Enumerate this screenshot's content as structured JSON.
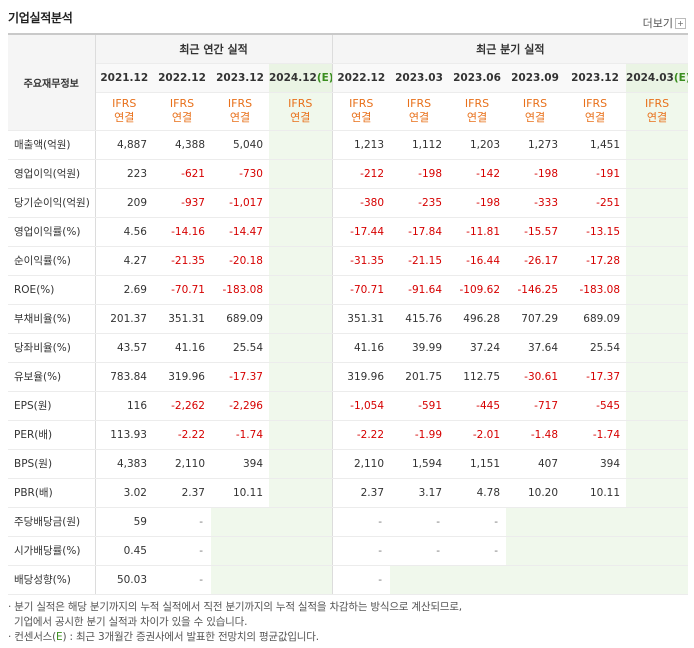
{
  "header": {
    "title": "기업실적분석",
    "more_label": "더보기",
    "more_icon": "plus-box-icon"
  },
  "table": {
    "corner_label": "주요재무정보",
    "group_annual": "최근 연간 실적",
    "group_quarter": "최근 분기 실적",
    "periods": [
      {
        "label": "2021.12",
        "est": false
      },
      {
        "label": "2022.12",
        "est": false
      },
      {
        "label": "2023.12",
        "est": false
      },
      {
        "label": "2024.12",
        "est": true
      },
      {
        "label": "2022.12",
        "est": false
      },
      {
        "label": "2023.03",
        "est": false
      },
      {
        "label": "2023.06",
        "est": false
      },
      {
        "label": "2023.09",
        "est": false
      },
      {
        "label": "2023.12",
        "est": false
      },
      {
        "label": "2024.03",
        "est": true
      }
    ],
    "est_marker": "(E)",
    "standard_top": "IFRS",
    "standard_bottom": "연결",
    "rows": [
      {
        "label": "매출액(억원)",
        "values": [
          "4,887",
          "4,388",
          "5,040",
          "",
          "1,213",
          "1,112",
          "1,203",
          "1,273",
          "1,451",
          ""
        ]
      },
      {
        "label": "영업이익(억원)",
        "values": [
          "223",
          "-621",
          "-730",
          "",
          "-212",
          "-198",
          "-142",
          "-198",
          "-191",
          ""
        ]
      },
      {
        "label": "당기순이익(억원)",
        "values": [
          "209",
          "-937",
          "-1,017",
          "",
          "-380",
          "-235",
          "-198",
          "-333",
          "-251",
          ""
        ]
      },
      {
        "label": "영업이익률(%)",
        "values": [
          "4.56",
          "-14.16",
          "-14.47",
          "",
          "-17.44",
          "-17.84",
          "-11.81",
          "-15.57",
          "-13.15",
          ""
        ]
      },
      {
        "label": "순이익률(%)",
        "values": [
          "4.27",
          "-21.35",
          "-20.18",
          "",
          "-31.35",
          "-21.15",
          "-16.44",
          "-26.17",
          "-17.28",
          ""
        ]
      },
      {
        "label": "ROE(%)",
        "values": [
          "2.69",
          "-70.71",
          "-183.08",
          "",
          "-70.71",
          "-91.64",
          "-109.62",
          "-146.25",
          "-183.08",
          ""
        ]
      },
      {
        "label": "부채비율(%)",
        "values": [
          "201.37",
          "351.31",
          "689.09",
          "",
          "351.31",
          "415.76",
          "496.28",
          "707.29",
          "689.09",
          ""
        ]
      },
      {
        "label": "당좌비율(%)",
        "values": [
          "43.57",
          "41.16",
          "25.54",
          "",
          "41.16",
          "39.99",
          "37.24",
          "37.64",
          "25.54",
          ""
        ]
      },
      {
        "label": "유보율(%)",
        "values": [
          "783.84",
          "319.96",
          "-17.37",
          "",
          "319.96",
          "201.75",
          "112.75",
          "-30.61",
          "-17.37",
          ""
        ]
      },
      {
        "label": "EPS(원)",
        "values": [
          "116",
          "-2,262",
          "-2,296",
          "",
          "-1,054",
          "-591",
          "-445",
          "-717",
          "-545",
          ""
        ]
      },
      {
        "label": "PER(배)",
        "values": [
          "113.93",
          "-2.22",
          "-1.74",
          "",
          "-2.22",
          "-1.99",
          "-2.01",
          "-1.48",
          "-1.74",
          ""
        ]
      },
      {
        "label": "BPS(원)",
        "values": [
          "4,383",
          "2,110",
          "394",
          "",
          "2,110",
          "1,594",
          "1,151",
          "407",
          "394",
          ""
        ]
      },
      {
        "label": "PBR(배)",
        "values": [
          "3.02",
          "2.37",
          "10.11",
          "",
          "2.37",
          "3.17",
          "4.78",
          "10.20",
          "10.11",
          ""
        ]
      },
      {
        "label": "주당배당금(원)",
        "values": [
          "59",
          "-",
          "",
          "",
          "-",
          "-",
          "-",
          "",
          "",
          ""
        ]
      },
      {
        "label": "시가배당률(%)",
        "values": [
          "0.45",
          "-",
          "",
          "",
          "-",
          "-",
          "-",
          "",
          "",
          ""
        ]
      },
      {
        "label": "배당성향(%)",
        "values": [
          "50.03",
          "-",
          "",
          "",
          "-",
          "",
          "",
          "",
          "",
          ""
        ]
      }
    ]
  },
  "footnotes": {
    "line1": "· 분기 실적은 해당 분기까지의 누적 실적에서 직전 분기까지의 누적 실적을 차감하는 방식으로 계산되므로,",
    "line2": "  기업에서 공시한 분기 실적과 차이가 있을 수 있습니다.",
    "line3_prefix": "· 컨센서스(",
    "line3_marker": "E",
    "line3_suffix": ") : 최근 3개월간 증권사에서 발표한 전망치의 평균값입니다."
  },
  "colors": {
    "negative": "#d60000",
    "ifrs": "#e8701a",
    "estimate_bg": "#f0f8ec",
    "estimate_text": "#3a8e1f"
  }
}
